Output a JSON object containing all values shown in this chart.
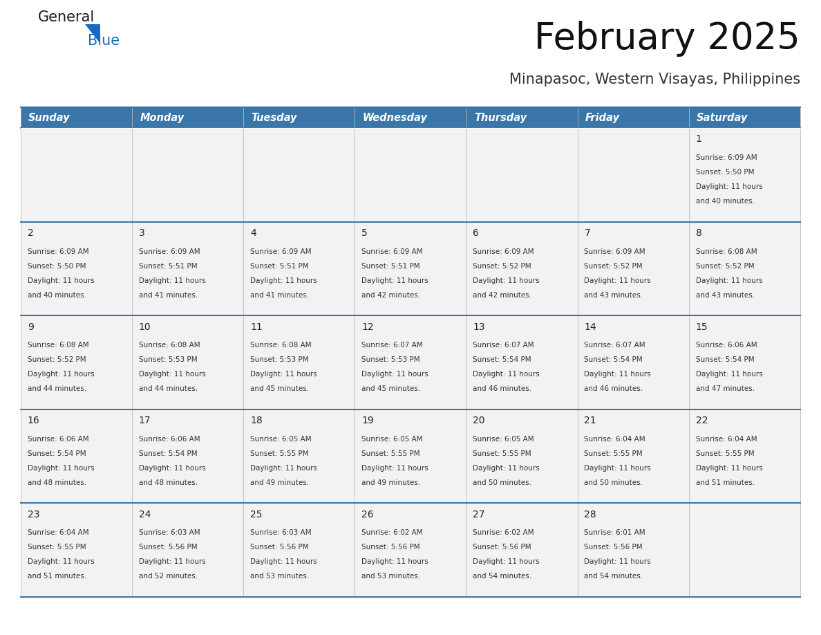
{
  "title": "February 2025",
  "subtitle": "Minapasoc, Western Visayas, Philippines",
  "header_bg_color": "#3a76a8",
  "header_text_color": "#ffffff",
  "day_headers": [
    "Sunday",
    "Monday",
    "Tuesday",
    "Wednesday",
    "Thursday",
    "Friday",
    "Saturday"
  ],
  "cell_bg_color": "#f2f2f2",
  "cell_border_color": "#3a76a8",
  "day_number_color": "#222222",
  "info_text_color": "#333333",
  "logo_general_color": "#1a1a1a",
  "logo_blue_color": "#1a6bbf",
  "logo_triangle_color": "#1a6bbf",
  "calendar_data": [
    [
      null,
      null,
      null,
      null,
      null,
      null,
      {
        "day": 1,
        "sunrise": "6:09 AM",
        "sunset": "5:50 PM",
        "daylight": "11 hours and 40 minutes."
      }
    ],
    [
      {
        "day": 2,
        "sunrise": "6:09 AM",
        "sunset": "5:50 PM",
        "daylight": "11 hours and 40 minutes."
      },
      {
        "day": 3,
        "sunrise": "6:09 AM",
        "sunset": "5:51 PM",
        "daylight": "11 hours and 41 minutes."
      },
      {
        "day": 4,
        "sunrise": "6:09 AM",
        "sunset": "5:51 PM",
        "daylight": "11 hours and 41 minutes."
      },
      {
        "day": 5,
        "sunrise": "6:09 AM",
        "sunset": "5:51 PM",
        "daylight": "11 hours and 42 minutes."
      },
      {
        "day": 6,
        "sunrise": "6:09 AM",
        "sunset": "5:52 PM",
        "daylight": "11 hours and 42 minutes."
      },
      {
        "day": 7,
        "sunrise": "6:09 AM",
        "sunset": "5:52 PM",
        "daylight": "11 hours and 43 minutes."
      },
      {
        "day": 8,
        "sunrise": "6:08 AM",
        "sunset": "5:52 PM",
        "daylight": "11 hours and 43 minutes."
      }
    ],
    [
      {
        "day": 9,
        "sunrise": "6:08 AM",
        "sunset": "5:52 PM",
        "daylight": "11 hours and 44 minutes."
      },
      {
        "day": 10,
        "sunrise": "6:08 AM",
        "sunset": "5:53 PM",
        "daylight": "11 hours and 44 minutes."
      },
      {
        "day": 11,
        "sunrise": "6:08 AM",
        "sunset": "5:53 PM",
        "daylight": "11 hours and 45 minutes."
      },
      {
        "day": 12,
        "sunrise": "6:07 AM",
        "sunset": "5:53 PM",
        "daylight": "11 hours and 45 minutes."
      },
      {
        "day": 13,
        "sunrise": "6:07 AM",
        "sunset": "5:54 PM",
        "daylight": "11 hours and 46 minutes."
      },
      {
        "day": 14,
        "sunrise": "6:07 AM",
        "sunset": "5:54 PM",
        "daylight": "11 hours and 46 minutes."
      },
      {
        "day": 15,
        "sunrise": "6:06 AM",
        "sunset": "5:54 PM",
        "daylight": "11 hours and 47 minutes."
      }
    ],
    [
      {
        "day": 16,
        "sunrise": "6:06 AM",
        "sunset": "5:54 PM",
        "daylight": "11 hours and 48 minutes."
      },
      {
        "day": 17,
        "sunrise": "6:06 AM",
        "sunset": "5:54 PM",
        "daylight": "11 hours and 48 minutes."
      },
      {
        "day": 18,
        "sunrise": "6:05 AM",
        "sunset": "5:55 PM",
        "daylight": "11 hours and 49 minutes."
      },
      {
        "day": 19,
        "sunrise": "6:05 AM",
        "sunset": "5:55 PM",
        "daylight": "11 hours and 49 minutes."
      },
      {
        "day": 20,
        "sunrise": "6:05 AM",
        "sunset": "5:55 PM",
        "daylight": "11 hours and 50 minutes."
      },
      {
        "day": 21,
        "sunrise": "6:04 AM",
        "sunset": "5:55 PM",
        "daylight": "11 hours and 50 minutes."
      },
      {
        "day": 22,
        "sunrise": "6:04 AM",
        "sunset": "5:55 PM",
        "daylight": "11 hours and 51 minutes."
      }
    ],
    [
      {
        "day": 23,
        "sunrise": "6:04 AM",
        "sunset": "5:55 PM",
        "daylight": "11 hours and 51 minutes."
      },
      {
        "day": 24,
        "sunrise": "6:03 AM",
        "sunset": "5:56 PM",
        "daylight": "11 hours and 52 minutes."
      },
      {
        "day": 25,
        "sunrise": "6:03 AM",
        "sunset": "5:56 PM",
        "daylight": "11 hours and 53 minutes."
      },
      {
        "day": 26,
        "sunrise": "6:02 AM",
        "sunset": "5:56 PM",
        "daylight": "11 hours and 53 minutes."
      },
      {
        "day": 27,
        "sunrise": "6:02 AM",
        "sunset": "5:56 PM",
        "daylight": "11 hours and 54 minutes."
      },
      {
        "day": 28,
        "sunrise": "6:01 AM",
        "sunset": "5:56 PM",
        "daylight": "11 hours and 54 minutes."
      },
      null
    ]
  ],
  "figsize": [
    11.88,
    9.18
  ],
  "dpi": 100
}
